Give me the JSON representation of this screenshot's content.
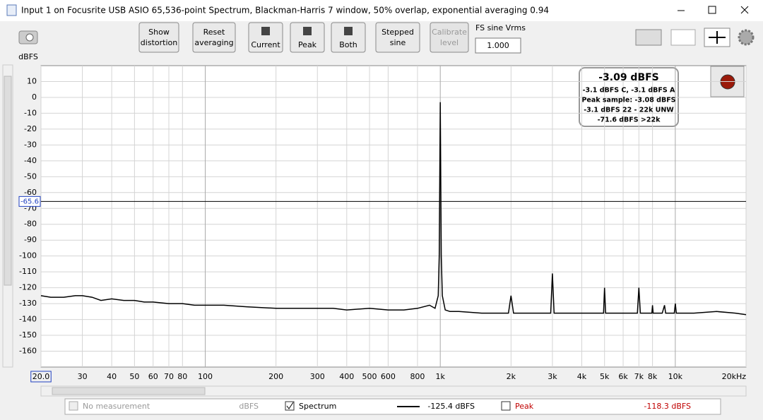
{
  "window": {
    "title": "Input 1 on Focusrite USB ASIO 65,536-point Spectrum, Blackman-Harris 7 window, 50% overlap, exponential averaging 0.94",
    "buttons": [
      [
        "Show",
        "distortion"
      ],
      [
        "Reset",
        "averaging"
      ],
      [
        "Current"
      ],
      [
        "Peak"
      ],
      [
        "Both"
      ],
      [
        "Stepped",
        "sine"
      ],
      [
        "Calibrate",
        "level"
      ]
    ],
    "fs_label": "FS sine Vrms",
    "fs_value": "1.000"
  },
  "chart_data": {
    "type": "line",
    "y_label": "dBFS",
    "log_x": true,
    "grid": true,
    "xlim": [
      20,
      20000
    ],
    "ylim": [
      -170,
      20
    ],
    "xticks": [
      {
        "value": 20,
        "label": "20.0"
      },
      30,
      40,
      50,
      60,
      70,
      80,
      100,
      200,
      300,
      400,
      500,
      600,
      800,
      {
        "value": 1000,
        "label": "1k"
      },
      {
        "value": 2000,
        "label": "2k"
      },
      {
        "value": 3000,
        "label": "3k"
      },
      {
        "value": 4000,
        "label": "4k"
      },
      {
        "value": 5000,
        "label": "5k"
      },
      {
        "value": 6000,
        "label": "6k"
      },
      {
        "value": 7000,
        "label": "7k"
      },
      {
        "value": 8000,
        "label": "8k"
      },
      {
        "value": 10000,
        "label": "10k"
      },
      {
        "value": 20000,
        "label": "20kHz"
      }
    ],
    "yticks": [
      10,
      0,
      -10,
      -20,
      -30,
      -40,
      -50,
      -60,
      -70,
      -80,
      -90,
      -100,
      -110,
      -120,
      -130,
      -140,
      -150,
      -160
    ],
    "cursor_y": -65.6,
    "series": [
      {
        "name": "Spectrum",
        "color": "#000000",
        "x": [
          20,
          22,
          25,
          28,
          30,
          33,
          36,
          40,
          45,
          50,
          55,
          60,
          70,
          80,
          90,
          100,
          120,
          150,
          200,
          250,
          300,
          350,
          400,
          500,
          600,
          700,
          800,
          900,
          950,
          980,
          990,
          1000,
          1010,
          1020,
          1050,
          1100,
          1200,
          1500,
          1800,
          1950,
          2000,
          2050,
          2200,
          2500,
          2800,
          2950,
          3000,
          3050,
          3300,
          4000,
          4800,
          4950,
          5000,
          5050,
          5500,
          6500,
          6900,
          7000,
          7100,
          7800,
          7950,
          8000,
          8050,
          8800,
          9000,
          9100,
          9900,
          10000,
          10100,
          12000,
          15000,
          18000,
          20000
        ],
        "values": [
          -125,
          -126,
          -126,
          -125,
          -125,
          -126,
          -128,
          -127,
          -128,
          -128,
          -129,
          -129,
          -130,
          -130,
          -131,
          -131,
          -131,
          -132,
          -133,
          -133,
          -133,
          -133,
          -134,
          -133,
          -134,
          -134,
          -133,
          -131,
          -133,
          -125,
          -100,
          -3,
          -100,
          -125,
          -134,
          -135,
          -135,
          -136,
          -136,
          -136,
          -125,
          -136,
          -136,
          -136,
          -136,
          -136,
          -111,
          -136,
          -136,
          -136,
          -136,
          -136,
          -120,
          -136,
          -136,
          -136,
          -136,
          -120,
          -136,
          -136,
          -136,
          -131,
          -136,
          -136,
          -131,
          -136,
          -136,
          -130,
          -136,
          -136,
          -135,
          -136,
          -137
        ]
      }
    ]
  },
  "info_box": {
    "headline": "-3.09 dBFS",
    "lines": [
      "-3.1 dBFS C, -3.1 dBFS A",
      "Peak sample: -3.08 dBFS",
      "-3.1 dBFS 22 - 22k UNW",
      "-71.6 dBFS >22k"
    ]
  },
  "legend": {
    "no_measurement": "No measurement",
    "unit": "dBFS",
    "spectrum_value": "-125.4 dBFS",
    "peak": "Peak",
    "peak_value": "-118.3 dBFS"
  }
}
